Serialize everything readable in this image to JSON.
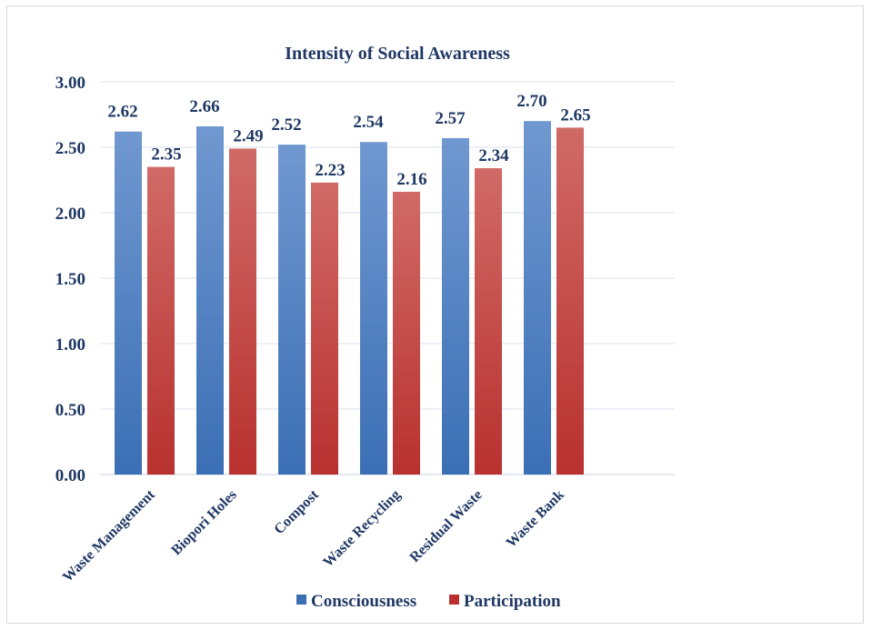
{
  "chart_data": {
    "type": "bar",
    "title": "Intensity of Social Awareness",
    "xlabel": "",
    "ylabel": "",
    "ylim": [
      0,
      3
    ],
    "yticks": [
      "0.00",
      "0.50",
      "1.00",
      "1.50",
      "2.00",
      "2.50",
      "3.00"
    ],
    "categories": [
      "Waste Management",
      "Biopori Holes",
      "Compost",
      "Waste Recycling",
      "Residual Waste",
      "Waste Bank"
    ],
    "series": [
      {
        "name": "Consciousness",
        "values": [
          2.62,
          2.66,
          2.52,
          2.54,
          2.57,
          2.7
        ],
        "labels": [
          "2.62",
          "2.66",
          "2.52",
          "2.54",
          "2.57",
          "2.70"
        ]
      },
      {
        "name": "Participation",
        "values": [
          2.35,
          2.49,
          2.23,
          2.16,
          2.34,
          2.65
        ],
        "labels": [
          "2.35",
          "2.49",
          "2.23",
          "2.16",
          "2.34",
          "2.65"
        ]
      }
    ],
    "grid": true,
    "legend": "bottom",
    "colors": {
      "Consciousness": [
        "#7098d0",
        "#3b6fb5"
      ],
      "Participation": [
        "#d06a66",
        "#b8312f"
      ],
      "text": "#1f3864",
      "grid": "#d9e1ee"
    }
  }
}
